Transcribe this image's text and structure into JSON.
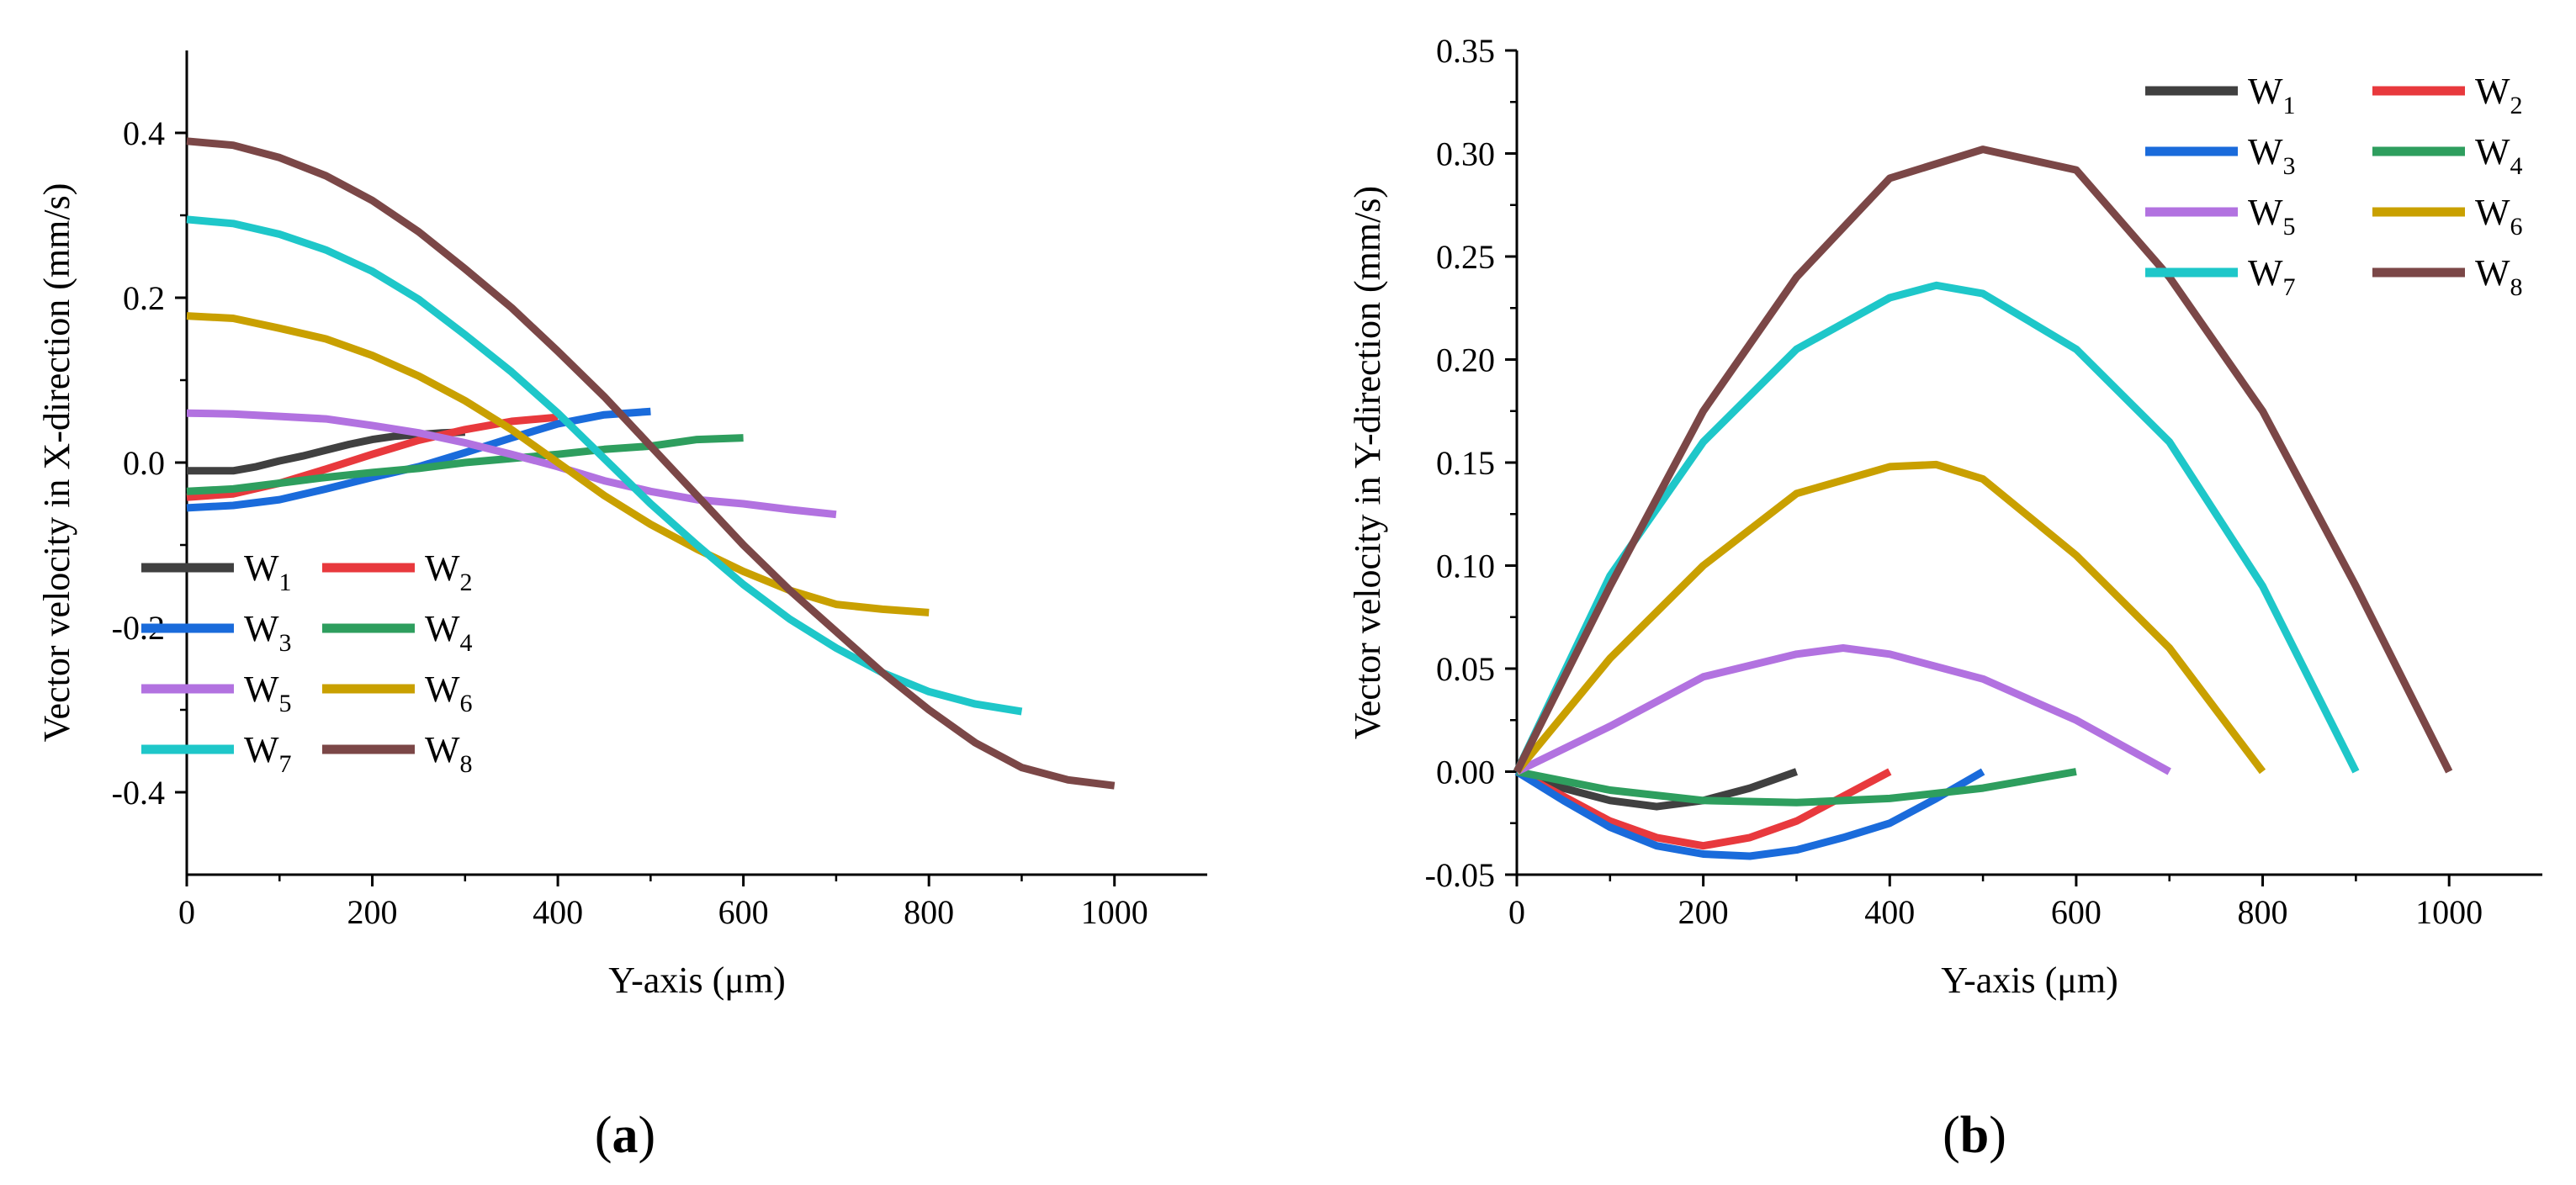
{
  "chart_data": [
    {
      "panel": "a",
      "type": "line",
      "panel_label": "a",
      "title": "",
      "xlabel": "Y-axis (μm)",
      "ylabel": "Vector velocity in X-direction (mm/s)",
      "xlim": [
        0,
        1100
      ],
      "ylim": [
        -0.5,
        0.5
      ],
      "xticks": [
        0,
        200,
        400,
        600,
        800,
        1000
      ],
      "yticks": [
        -0.4,
        -0.2,
        0.0,
        0.2,
        0.4
      ],
      "ytick_labels": [
        "-0.4",
        "-0.2",
        "0.0",
        "0.2",
        "0.4"
      ],
      "grid": false,
      "legend_position": "lower-left",
      "series": [
        {
          "name": "W1",
          "letter": "W",
          "sub": "1",
          "color": "#404040",
          "x": [
            0,
            25,
            50,
            75,
            100,
            125,
            150,
            175,
            200,
            225,
            250,
            275,
            300
          ],
          "y": [
            -0.01,
            -0.01,
            -0.01,
            -0.005,
            0.002,
            0.008,
            0.015,
            0.022,
            0.028,
            0.032,
            0.034,
            0.036,
            0.037
          ]
        },
        {
          "name": "W2",
          "letter": "W",
          "sub": "2",
          "color": "#e8393d",
          "x": [
            0,
            50,
            100,
            150,
            200,
            250,
            300,
            350,
            400
          ],
          "y": [
            -0.042,
            -0.038,
            -0.025,
            -0.008,
            0.01,
            0.027,
            0.04,
            0.05,
            0.055
          ]
        },
        {
          "name": "W3",
          "letter": "W",
          "sub": "3",
          "color": "#1a6bdb",
          "x": [
            0,
            50,
            100,
            150,
            200,
            250,
            300,
            350,
            400,
            450,
            500
          ],
          "y": [
            -0.055,
            -0.052,
            -0.045,
            -0.032,
            -0.018,
            -0.005,
            0.012,
            0.03,
            0.047,
            0.058,
            0.062
          ]
        },
        {
          "name": "W4",
          "letter": "W",
          "sub": "4",
          "color": "#2e9e5e",
          "x": [
            0,
            50,
            100,
            150,
            200,
            250,
            300,
            350,
            400,
            450,
            500,
            550,
            600
          ],
          "y": [
            -0.035,
            -0.032,
            -0.025,
            -0.018,
            -0.012,
            -0.007,
            0.0,
            0.005,
            0.01,
            0.016,
            0.02,
            0.028,
            0.03
          ]
        },
        {
          "name": "W5",
          "letter": "W",
          "sub": "5",
          "color": "#b272e0",
          "x": [
            0,
            50,
            100,
            150,
            200,
            250,
            300,
            350,
            400,
            450,
            500,
            550,
            600,
            650,
            700
          ],
          "y": [
            0.06,
            0.059,
            0.056,
            0.053,
            0.045,
            0.036,
            0.024,
            0.01,
            -0.005,
            -0.022,
            -0.035,
            -0.045,
            -0.05,
            -0.057,
            -0.063
          ]
        },
        {
          "name": "W6",
          "letter": "W",
          "sub": "6",
          "color": "#c9a000",
          "x": [
            0,
            50,
            100,
            150,
            200,
            250,
            300,
            350,
            400,
            450,
            500,
            550,
            600,
            650,
            700,
            750,
            800
          ],
          "y": [
            0.178,
            0.175,
            0.163,
            0.15,
            0.13,
            0.105,
            0.075,
            0.04,
            0.0,
            -0.04,
            -0.075,
            -0.105,
            -0.132,
            -0.155,
            -0.172,
            -0.178,
            -0.182
          ]
        },
        {
          "name": "W7",
          "letter": "W",
          "sub": "7",
          "color": "#1ec7c9",
          "x": [
            0,
            50,
            100,
            150,
            200,
            250,
            300,
            350,
            400,
            450,
            500,
            550,
            600,
            650,
            700,
            750,
            800,
            850,
            900
          ],
          "y": [
            0.295,
            0.29,
            0.277,
            0.258,
            0.232,
            0.198,
            0.155,
            0.11,
            0.06,
            0.005,
            -0.05,
            -0.1,
            -0.148,
            -0.19,
            -0.225,
            -0.255,
            -0.278,
            -0.293,
            -0.302
          ]
        },
        {
          "name": "W8",
          "letter": "W",
          "sub": "8",
          "color": "#7b4747",
          "x": [
            0,
            50,
            100,
            150,
            200,
            250,
            300,
            350,
            400,
            450,
            500,
            550,
            600,
            650,
            700,
            750,
            800,
            850,
            900,
            950,
            1000
          ],
          "y": [
            0.39,
            0.385,
            0.37,
            0.348,
            0.318,
            0.28,
            0.235,
            0.188,
            0.135,
            0.08,
            0.02,
            -0.04,
            -0.1,
            -0.155,
            -0.205,
            -0.255,
            -0.3,
            -0.34,
            -0.37,
            -0.385,
            -0.392
          ]
        }
      ]
    },
    {
      "panel": "b",
      "type": "line",
      "panel_label": "b",
      "title": "",
      "xlabel": "Y-axis (μm)",
      "ylabel": "Vector velocity in Y-direction (mm/s)",
      "xlim": [
        0,
        1100
      ],
      "ylim": [
        -0.05,
        0.35
      ],
      "xticks": [
        0,
        200,
        400,
        600,
        800,
        1000
      ],
      "yticks": [
        -0.05,
        0.0,
        0.05,
        0.1,
        0.15,
        0.2,
        0.25,
        0.3,
        0.35
      ],
      "ytick_labels": [
        "-0.05",
        "0.00",
        "0.05",
        "0.10",
        "0.15",
        "0.20",
        "0.25",
        "0.30",
        "0.35"
      ],
      "grid": false,
      "legend_position": "top-right",
      "series": [
        {
          "name": "W1",
          "letter": "W",
          "sub": "1",
          "color": "#404040",
          "x": [
            0,
            50,
            100,
            150,
            200,
            250,
            300
          ],
          "y": [
            0.0,
            -0.008,
            -0.014,
            -0.017,
            -0.014,
            -0.008,
            0.0
          ]
        },
        {
          "name": "W2",
          "letter": "W",
          "sub": "2",
          "color": "#e8393d",
          "x": [
            0,
            50,
            100,
            150,
            200,
            250,
            300,
            350,
            400
          ],
          "y": [
            0.0,
            -0.012,
            -0.024,
            -0.032,
            -0.036,
            -0.032,
            -0.024,
            -0.012,
            0.0
          ]
        },
        {
          "name": "W3",
          "letter": "W",
          "sub": "3",
          "color": "#1a6bdb",
          "x": [
            0,
            50,
            100,
            150,
            200,
            250,
            300,
            350,
            400,
            450,
            500
          ],
          "y": [
            0.0,
            -0.014,
            -0.027,
            -0.036,
            -0.04,
            -0.041,
            -0.038,
            -0.032,
            -0.025,
            -0.013,
            0.0
          ]
        },
        {
          "name": "W4",
          "letter": "W",
          "sub": "4",
          "color": "#2e9e5e",
          "x": [
            0,
            100,
            200,
            300,
            400,
            500,
            600
          ],
          "y": [
            0.0,
            -0.009,
            -0.014,
            -0.015,
            -0.013,
            -0.008,
            0.0
          ]
        },
        {
          "name": "W5",
          "letter": "W",
          "sub": "5",
          "color": "#b272e0",
          "x": [
            0,
            100,
            200,
            300,
            350,
            400,
            500,
            600,
            700
          ],
          "y": [
            0.0,
            0.022,
            0.046,
            0.057,
            0.06,
            0.057,
            0.045,
            0.025,
            0.0
          ]
        },
        {
          "name": "W6",
          "letter": "W",
          "sub": "6",
          "color": "#c9a000",
          "x": [
            0,
            100,
            200,
            300,
            400,
            450,
            500,
            600,
            700,
            800
          ],
          "y": [
            0.0,
            0.055,
            0.1,
            0.135,
            0.148,
            0.149,
            0.142,
            0.105,
            0.06,
            0.0
          ]
        },
        {
          "name": "W7",
          "letter": "W",
          "sub": "7",
          "color": "#1ec7c9",
          "x": [
            0,
            100,
            200,
            300,
            400,
            450,
            500,
            600,
            700,
            800,
            900
          ],
          "y": [
            0.0,
            0.095,
            0.16,
            0.205,
            0.23,
            0.236,
            0.232,
            0.205,
            0.16,
            0.09,
            0.0
          ]
        },
        {
          "name": "W8",
          "letter": "W",
          "sub": "8",
          "color": "#7b4747",
          "x": [
            0,
            100,
            200,
            300,
            400,
            500,
            600,
            700,
            800,
            900,
            1000
          ],
          "y": [
            0.0,
            0.09,
            0.175,
            0.24,
            0.288,
            0.302,
            0.292,
            0.24,
            0.175,
            0.09,
            0.0
          ]
        }
      ]
    }
  ]
}
